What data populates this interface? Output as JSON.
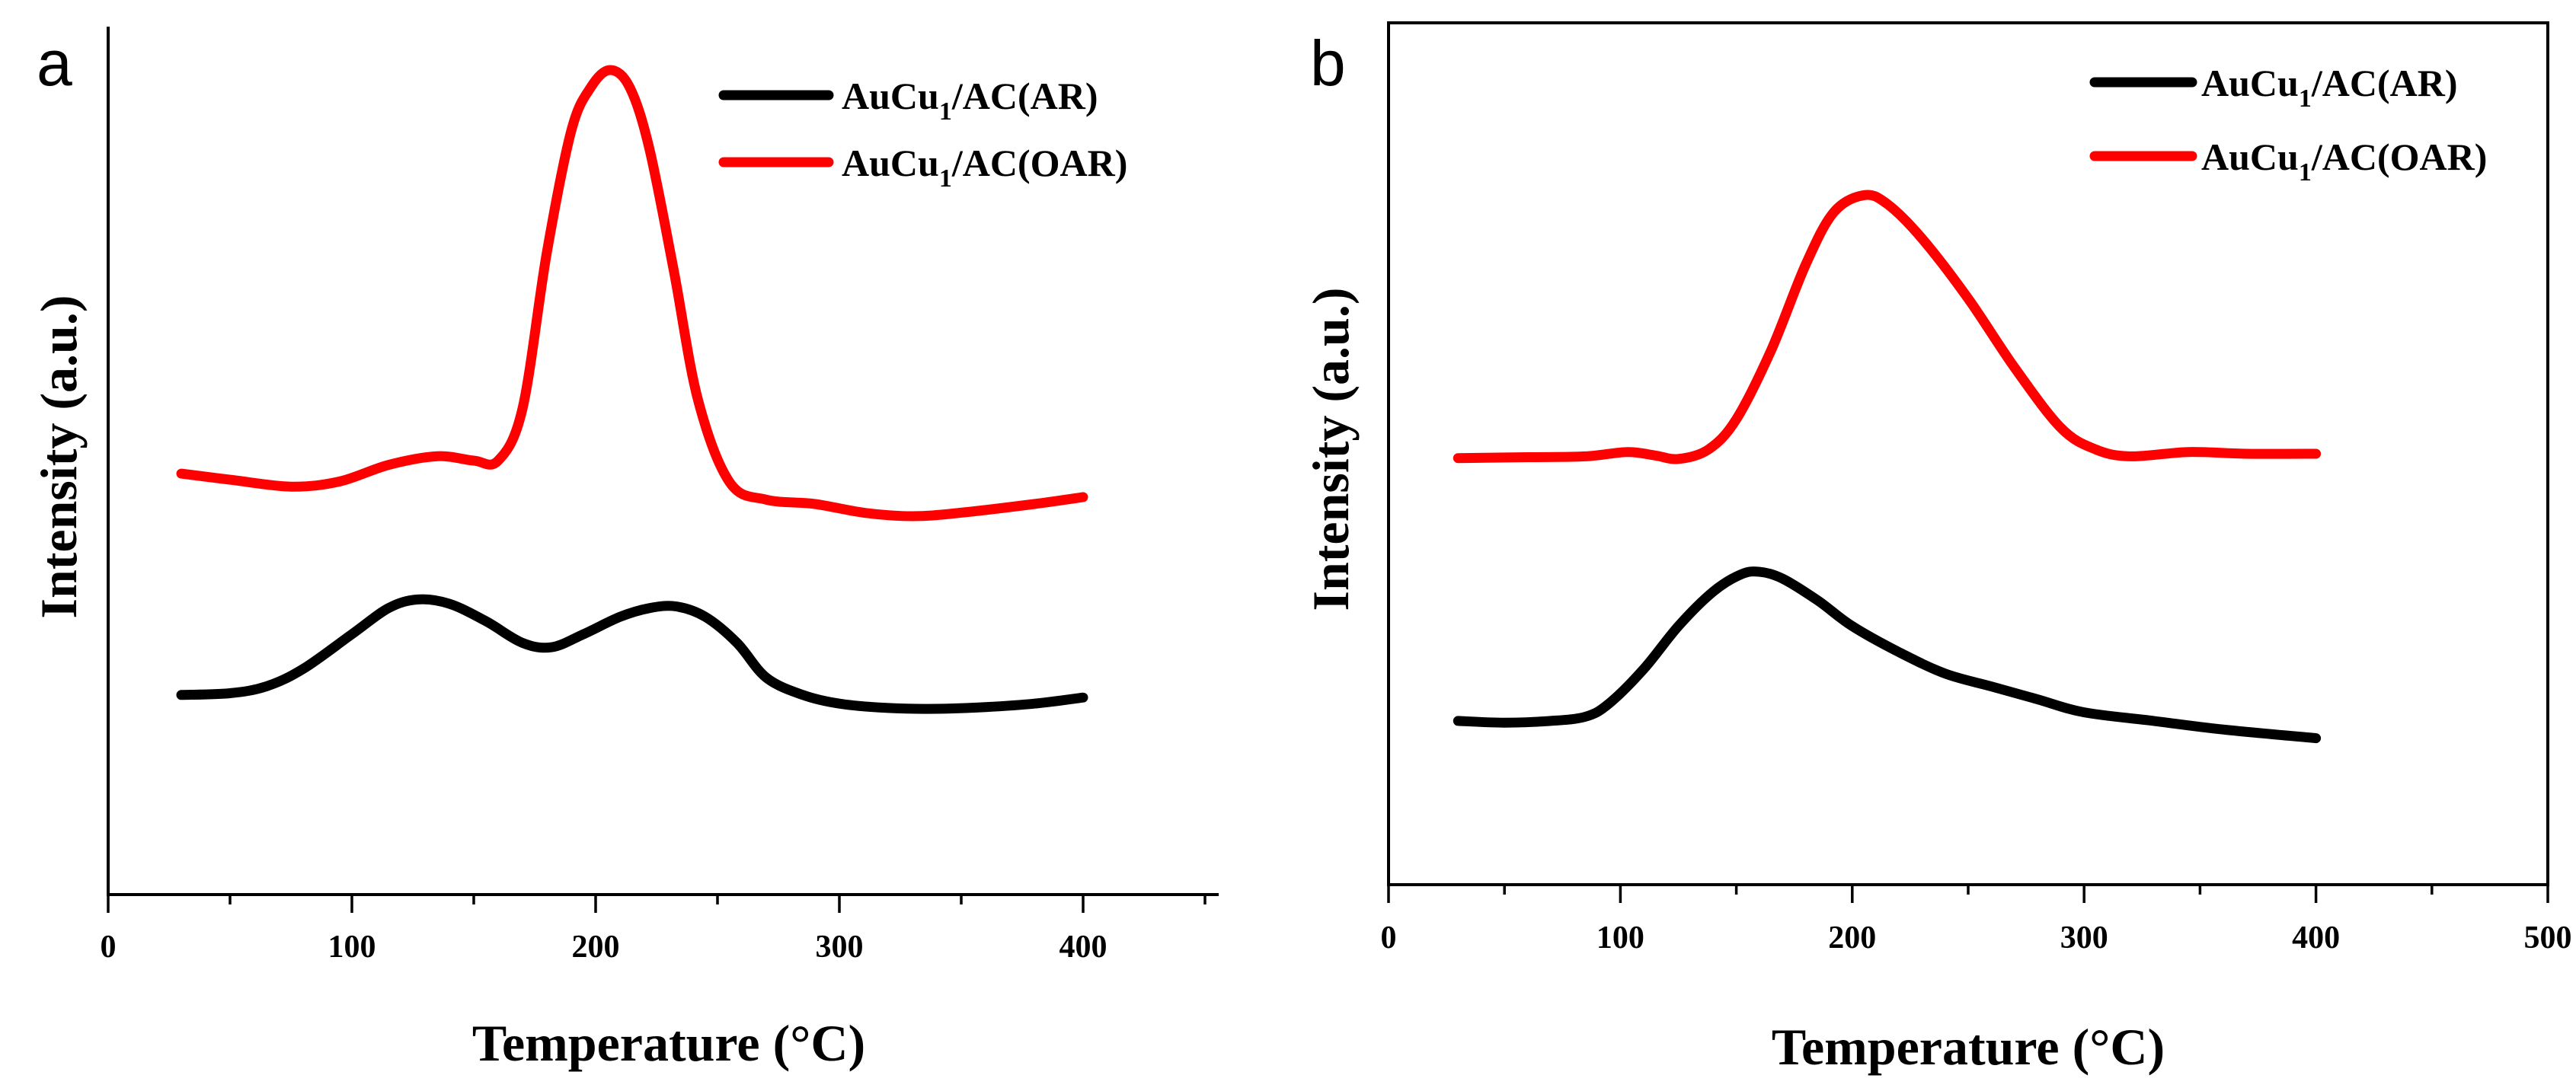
{
  "chart_data": [
    {
      "type": "line",
      "panel_label": "a",
      "xlabel": "Temperature (°C)",
      "ylabel": "Intensity (a.u.)",
      "xlim": [
        0,
        450
      ],
      "ylim": [
        0,
        1
      ],
      "xticks": [
        0,
        100,
        200,
        300,
        400
      ],
      "x_minor_ticks": [
        50,
        150,
        250,
        350,
        450
      ],
      "yticks": [],
      "grid": false,
      "legend_position": "top-right",
      "series": [
        {
          "name": "AuCu1/AC(AR)",
          "label_main": "AuCu",
          "label_sub": "1",
          "label_rest": "/AC(AR)",
          "color": "#000000",
          "x": [
            30,
            50,
            65,
            80,
            100,
            115,
            127,
            140,
            155,
            170,
            182,
            195,
            210,
            222,
            233,
            245,
            258,
            270,
            285,
            300,
            320,
            340,
            360,
            380,
            400
          ],
          "y": [
            0.23,
            0.232,
            0.24,
            0.26,
            0.3,
            0.33,
            0.34,
            0.335,
            0.315,
            0.29,
            0.285,
            0.3,
            0.32,
            0.33,
            0.332,
            0.32,
            0.29,
            0.25,
            0.23,
            0.22,
            0.215,
            0.214,
            0.216,
            0.22,
            0.227
          ]
        },
        {
          "name": "AuCu1/AC(OAR)",
          "label_main": "AuCu",
          "label_sub": "1",
          "label_rest": "/AC(OAR)",
          "color": "#ff0000",
          "x": [
            30,
            50,
            75,
            95,
            115,
            135,
            150,
            160,
            170,
            180,
            190,
            198,
            206,
            214,
            222,
            232,
            242,
            255,
            270,
            290,
            310,
            330,
            350,
            380,
            400
          ],
          "y": [
            0.485,
            0.478,
            0.47,
            0.476,
            0.495,
            0.505,
            0.5,
            0.5,
            0.56,
            0.74,
            0.88,
            0.93,
            0.95,
            0.93,
            0.86,
            0.72,
            0.57,
            0.475,
            0.455,
            0.45,
            0.44,
            0.436,
            0.44,
            0.45,
            0.458
          ]
        }
      ]
    },
    {
      "type": "line",
      "panel_label": "b",
      "xlabel": "Temperature (°C)",
      "ylabel": "Intensity (a.u.)",
      "xlim": [
        0,
        500
      ],
      "ylim": [
        0,
        1
      ],
      "xticks": [
        0,
        100,
        200,
        300,
        400,
        500
      ],
      "x_minor_ticks": [
        50,
        150,
        250,
        350,
        450
      ],
      "yticks": [],
      "grid": false,
      "legend_position": "top-right",
      "series": [
        {
          "name": "AuCu1/AC(AR)",
          "label_main": "AuCu",
          "label_sub": "1",
          "label_rest": "/AC(AR)",
          "color": "#000000",
          "x": [
            30,
            50,
            70,
            85,
            95,
            110,
            125,
            140,
            152,
            160,
            170,
            185,
            200,
            220,
            240,
            260,
            280,
            300,
            330,
            360,
            400
          ],
          "y": [
            0.19,
            0.188,
            0.19,
            0.195,
            0.21,
            0.25,
            0.3,
            0.34,
            0.36,
            0.363,
            0.355,
            0.33,
            0.3,
            0.27,
            0.245,
            0.23,
            0.215,
            0.2,
            0.19,
            0.18,
            0.17
          ]
        },
        {
          "name": "AuCu1/AC(OAR)",
          "label_main": "AuCu",
          "label_sub": "1",
          "label_rest": "/AC(OAR)",
          "color": "#ff0000",
          "x": [
            30,
            60,
            85,
            103,
            115,
            125,
            138,
            150,
            165,
            180,
            192,
            205,
            215,
            230,
            250,
            270,
            290,
            305,
            320,
            345,
            370,
            400
          ],
          "y": [
            0.495,
            0.496,
            0.497,
            0.502,
            0.498,
            0.494,
            0.505,
            0.54,
            0.62,
            0.72,
            0.78,
            0.8,
            0.79,
            0.75,
            0.68,
            0.6,
            0.53,
            0.505,
            0.497,
            0.502,
            0.5,
            0.5
          ]
        }
      ]
    }
  ]
}
